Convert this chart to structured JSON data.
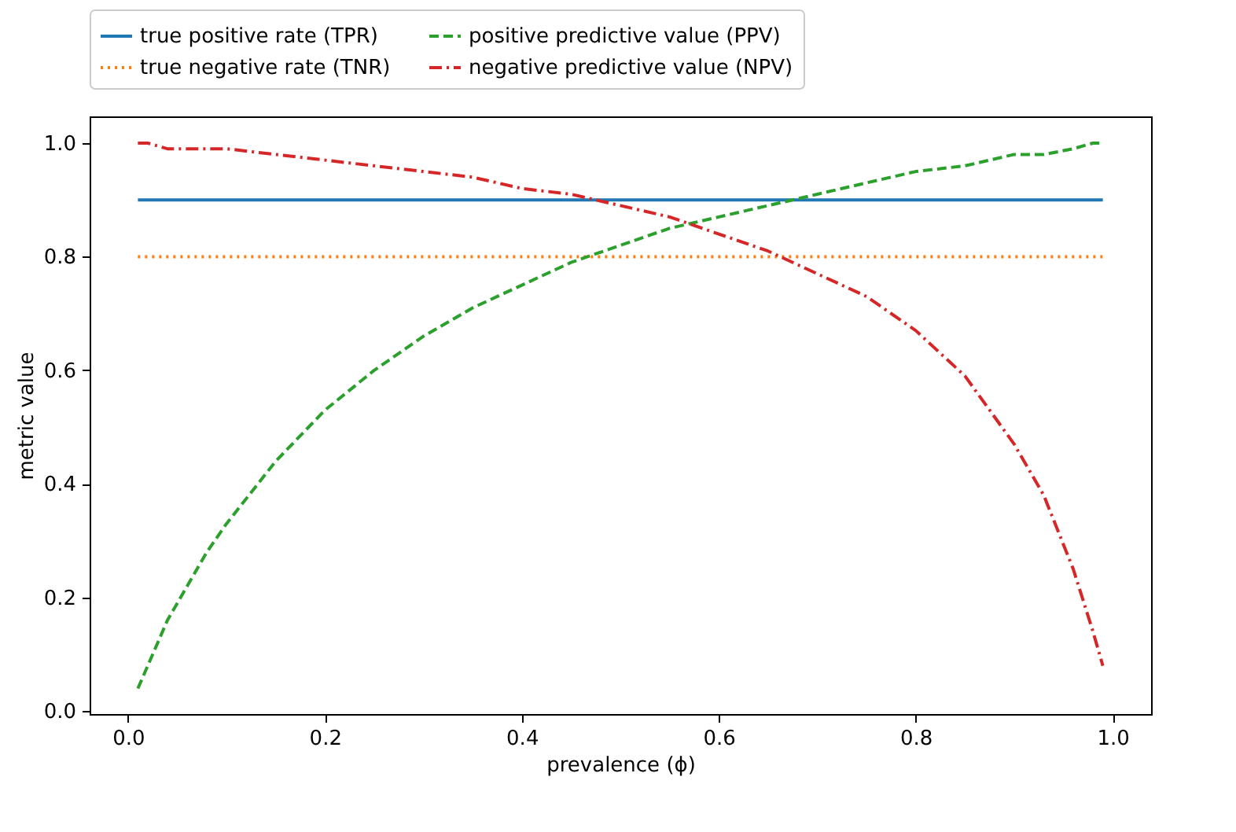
{
  "chart_data": {
    "type": "line",
    "xlabel": "prevalence (ϕ)",
    "ylabel": "metric value",
    "x": [
      0.01,
      0.02,
      0.04,
      0.06,
      0.08,
      0.1,
      0.15,
      0.2,
      0.25,
      0.3,
      0.35,
      0.4,
      0.45,
      0.5,
      0.55,
      0.6,
      0.65,
      0.7,
      0.75,
      0.8,
      0.85,
      0.9,
      0.93,
      0.96,
      0.98,
      0.99
    ],
    "series": [
      {
        "name": "true positive rate (TPR)",
        "color": "#1f77b4",
        "line_style": "solid",
        "values": [
          0.9,
          0.9,
          0.9,
          0.9,
          0.9,
          0.9,
          0.9,
          0.9,
          0.9,
          0.9,
          0.9,
          0.9,
          0.9,
          0.9,
          0.9,
          0.9,
          0.9,
          0.9,
          0.9,
          0.9,
          0.9,
          0.9,
          0.9,
          0.9,
          0.9,
          0.9
        ]
      },
      {
        "name": "true negative rate (TNR)",
        "color": "#ff7f0e",
        "line_style": "dotted",
        "values": [
          0.8,
          0.8,
          0.8,
          0.8,
          0.8,
          0.8,
          0.8,
          0.8,
          0.8,
          0.8,
          0.8,
          0.8,
          0.8,
          0.8,
          0.8,
          0.8,
          0.8,
          0.8,
          0.8,
          0.8,
          0.8,
          0.8,
          0.8,
          0.8,
          0.8,
          0.8
        ]
      },
      {
        "name": "positive predictive value (PPV)",
        "color": "#2ca02c",
        "line_style": "dashed",
        "values": [
          0.04,
          0.08,
          0.16,
          0.22,
          0.28,
          0.33,
          0.44,
          0.53,
          0.6,
          0.66,
          0.71,
          0.75,
          0.79,
          0.82,
          0.85,
          0.87,
          0.89,
          0.91,
          0.93,
          0.95,
          0.96,
          0.98,
          0.98,
          0.99,
          1.0,
          1.0
        ]
      },
      {
        "name": "negative predictive value (NPV)",
        "color": "#d62728",
        "line_style": "dashdot",
        "values": [
          1.0,
          1.0,
          0.99,
          0.99,
          0.99,
          0.99,
          0.98,
          0.97,
          0.96,
          0.95,
          0.94,
          0.92,
          0.91,
          0.89,
          0.87,
          0.84,
          0.81,
          0.77,
          0.73,
          0.67,
          0.59,
          0.47,
          0.38,
          0.25,
          0.14,
          0.08
        ]
      }
    ],
    "xlim": [
      -0.039,
      1.039
    ],
    "ylim": [
      -0.005,
      1.047
    ],
    "xticks": [
      {
        "value": 0,
        "label": "0.0"
      },
      0.2,
      0.4,
      0.6,
      0.8,
      {
        "value": 1,
        "label": "1.0"
      }
    ],
    "yticks": [
      {
        "value": 0,
        "label": "0.0"
      },
      0.2,
      0.4,
      0.6,
      0.8,
      {
        "value": 1,
        "label": "1.0"
      }
    ],
    "legend": "top",
    "grid": false
  }
}
